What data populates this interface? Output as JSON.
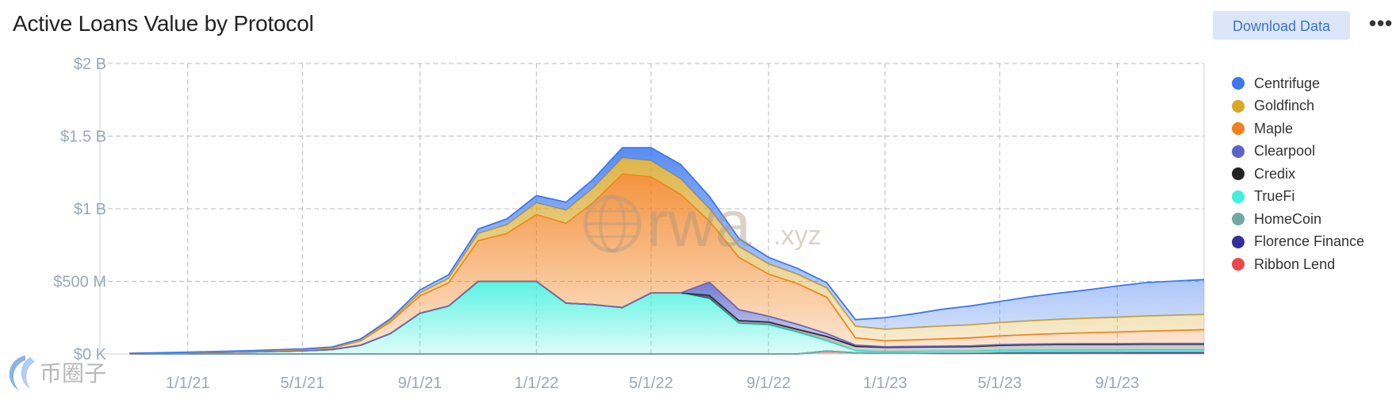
{
  "header": {
    "title": "Active Loans Value by Protocol",
    "download_label": "Download Data",
    "more_icon": "more-icon"
  },
  "watermark": {
    "logo_text": "rwa",
    "suffix": ".xyz",
    "corner_text": "币圈子"
  },
  "colors": {
    "grid": "#bbbbbb",
    "axis_text": "#9aa8b8",
    "Centrifuge": "#3d78f0",
    "Goldfinch": "#d9a828",
    "Maple": "#f2801c",
    "Clearpool": "#5a64c8",
    "Credix": "#222222",
    "TrueFi": "#3ff0dc",
    "HomeCoin": "#6faba0",
    "Florence Finance": "#332f9c",
    "Ribbon Lend": "#e84848"
  },
  "chart_data": {
    "type": "area",
    "stacked": true,
    "title": "Active Loans Value by Protocol",
    "x_ticks": [
      "1/1/21",
      "5/1/21",
      "9/1/21",
      "1/1/22",
      "5/1/22",
      "9/1/22",
      "1/1/23",
      "5/1/23",
      "9/1/23"
    ],
    "x_range": [
      "10/1/20",
      "12/1/23"
    ],
    "ylim": [
      0,
      2000000000
    ],
    "y_ticks": [
      0,
      500000000,
      1000000000,
      1500000000,
      2000000000
    ],
    "y_tick_labels": [
      "$0 K",
      "$500 M",
      "$1 B",
      "$1.5 B",
      "$2 B"
    ],
    "grid": true,
    "legend_position": "right",
    "series_order_bottom_to_top": [
      "Ribbon Lend",
      "Florence Finance",
      "HomeCoin",
      "TrueFi",
      "Credix",
      "Clearpool",
      "Maple",
      "Goldfinch",
      "Centrifuge"
    ],
    "x": [
      "11/1/20",
      "1/1/21",
      "3/1/21",
      "5/1/21",
      "6/1/21",
      "7/1/21",
      "8/1/21",
      "9/1/21",
      "10/1/21",
      "11/1/21",
      "12/1/21",
      "1/1/22",
      "2/1/22",
      "3/1/22",
      "4/1/22",
      "5/1/22",
      "6/1/22",
      "7/1/22",
      "8/1/22",
      "9/1/22",
      "10/1/22",
      "11/1/22",
      "12/1/22",
      "1/1/23",
      "2/1/23",
      "3/1/23",
      "4/1/23",
      "5/1/23",
      "6/1/23",
      "7/1/23",
      "8/1/23",
      "9/1/23",
      "10/1/23",
      "11/1/23",
      "12/1/23"
    ],
    "series": [
      {
        "name": "Ribbon Lend",
        "values": [
          0,
          0,
          0,
          0,
          0,
          0,
          0,
          0,
          0,
          0,
          0,
          0,
          0,
          0,
          0,
          0,
          0,
          0,
          0,
          0,
          0,
          20,
          8,
          5,
          5,
          4,
          4,
          4,
          4,
          4,
          4,
          4,
          4,
          4,
          4
        ]
      },
      {
        "name": "Florence Finance",
        "values": [
          0,
          0,
          0,
          0,
          0,
          0,
          0,
          0,
          0,
          0,
          0,
          0,
          0,
          0,
          0,
          0,
          0,
          0,
          0,
          0,
          0,
          0,
          0,
          0,
          0,
          0,
          0,
          5,
          6,
          6,
          7,
          7,
          8,
          8,
          8
        ]
      },
      {
        "name": "HomeCoin",
        "values": [
          0,
          0,
          0,
          0,
          0,
          0,
          0,
          0,
          0,
          0,
          0,
          0,
          0,
          0,
          0,
          0,
          0,
          0,
          0,
          0,
          0,
          0,
          0,
          0,
          0,
          3,
          3,
          3,
          3,
          3,
          3,
          3,
          3,
          3,
          3
        ]
      },
      {
        "name": "TrueFi",
        "values": [
          3,
          8,
          14,
          22,
          30,
          60,
          140,
          280,
          330,
          500,
          500,
          500,
          350,
          340,
          320,
          420,
          420,
          380,
          210,
          200,
          150,
          70,
          15,
          10,
          12,
          12,
          12,
          12,
          12,
          12,
          12,
          12,
          12,
          12,
          12
        ]
      },
      {
        "name": "Credix",
        "values": [
          0,
          0,
          0,
          0,
          0,
          0,
          0,
          0,
          0,
          0,
          0,
          0,
          0,
          0,
          0,
          0,
          0,
          25,
          20,
          20,
          20,
          30,
          30,
          30,
          30,
          30,
          32,
          35,
          38,
          40,
          40,
          40,
          40,
          40,
          40
        ]
      },
      {
        "name": "Clearpool",
        "values": [
          0,
          0,
          0,
          0,
          0,
          0,
          0,
          0,
          0,
          0,
          0,
          0,
          0,
          0,
          0,
          0,
          0,
          90,
          75,
          40,
          35,
          20,
          8,
          5,
          5,
          5,
          5,
          5,
          5,
          5,
          5,
          5,
          5,
          5,
          5
        ]
      },
      {
        "name": "Maple",
        "values": [
          0,
          2,
          4,
          7,
          10,
          30,
          80,
          120,
          160,
          280,
          330,
          460,
          550,
          700,
          920,
          800,
          680,
          420,
          360,
          290,
          280,
          250,
          50,
          40,
          45,
          50,
          55,
          60,
          65,
          70,
          75,
          80,
          85,
          90,
          95
        ]
      },
      {
        "name": "Goldfinch",
        "values": [
          0,
          0,
          1,
          2,
          3,
          5,
          10,
          20,
          30,
          50,
          60,
          80,
          90,
          100,
          110,
          110,
          105,
          85,
          75,
          70,
          65,
          65,
          80,
          80,
          85,
          88,
          90,
          92,
          95,
          98,
          100,
          102,
          104,
          105,
          105
        ]
      },
      {
        "name": "Centrifuge",
        "values": [
          1,
          2,
          3,
          4,
          5,
          8,
          12,
          20,
          25,
          30,
          40,
          50,
          55,
          60,
          70,
          90,
          100,
          85,
          55,
          45,
          40,
          35,
          45,
          80,
          95,
          115,
          130,
          145,
          165,
          180,
          195,
          215,
          230,
          235,
          240
        ]
      }
    ],
    "unit_note": "values in $M"
  }
}
